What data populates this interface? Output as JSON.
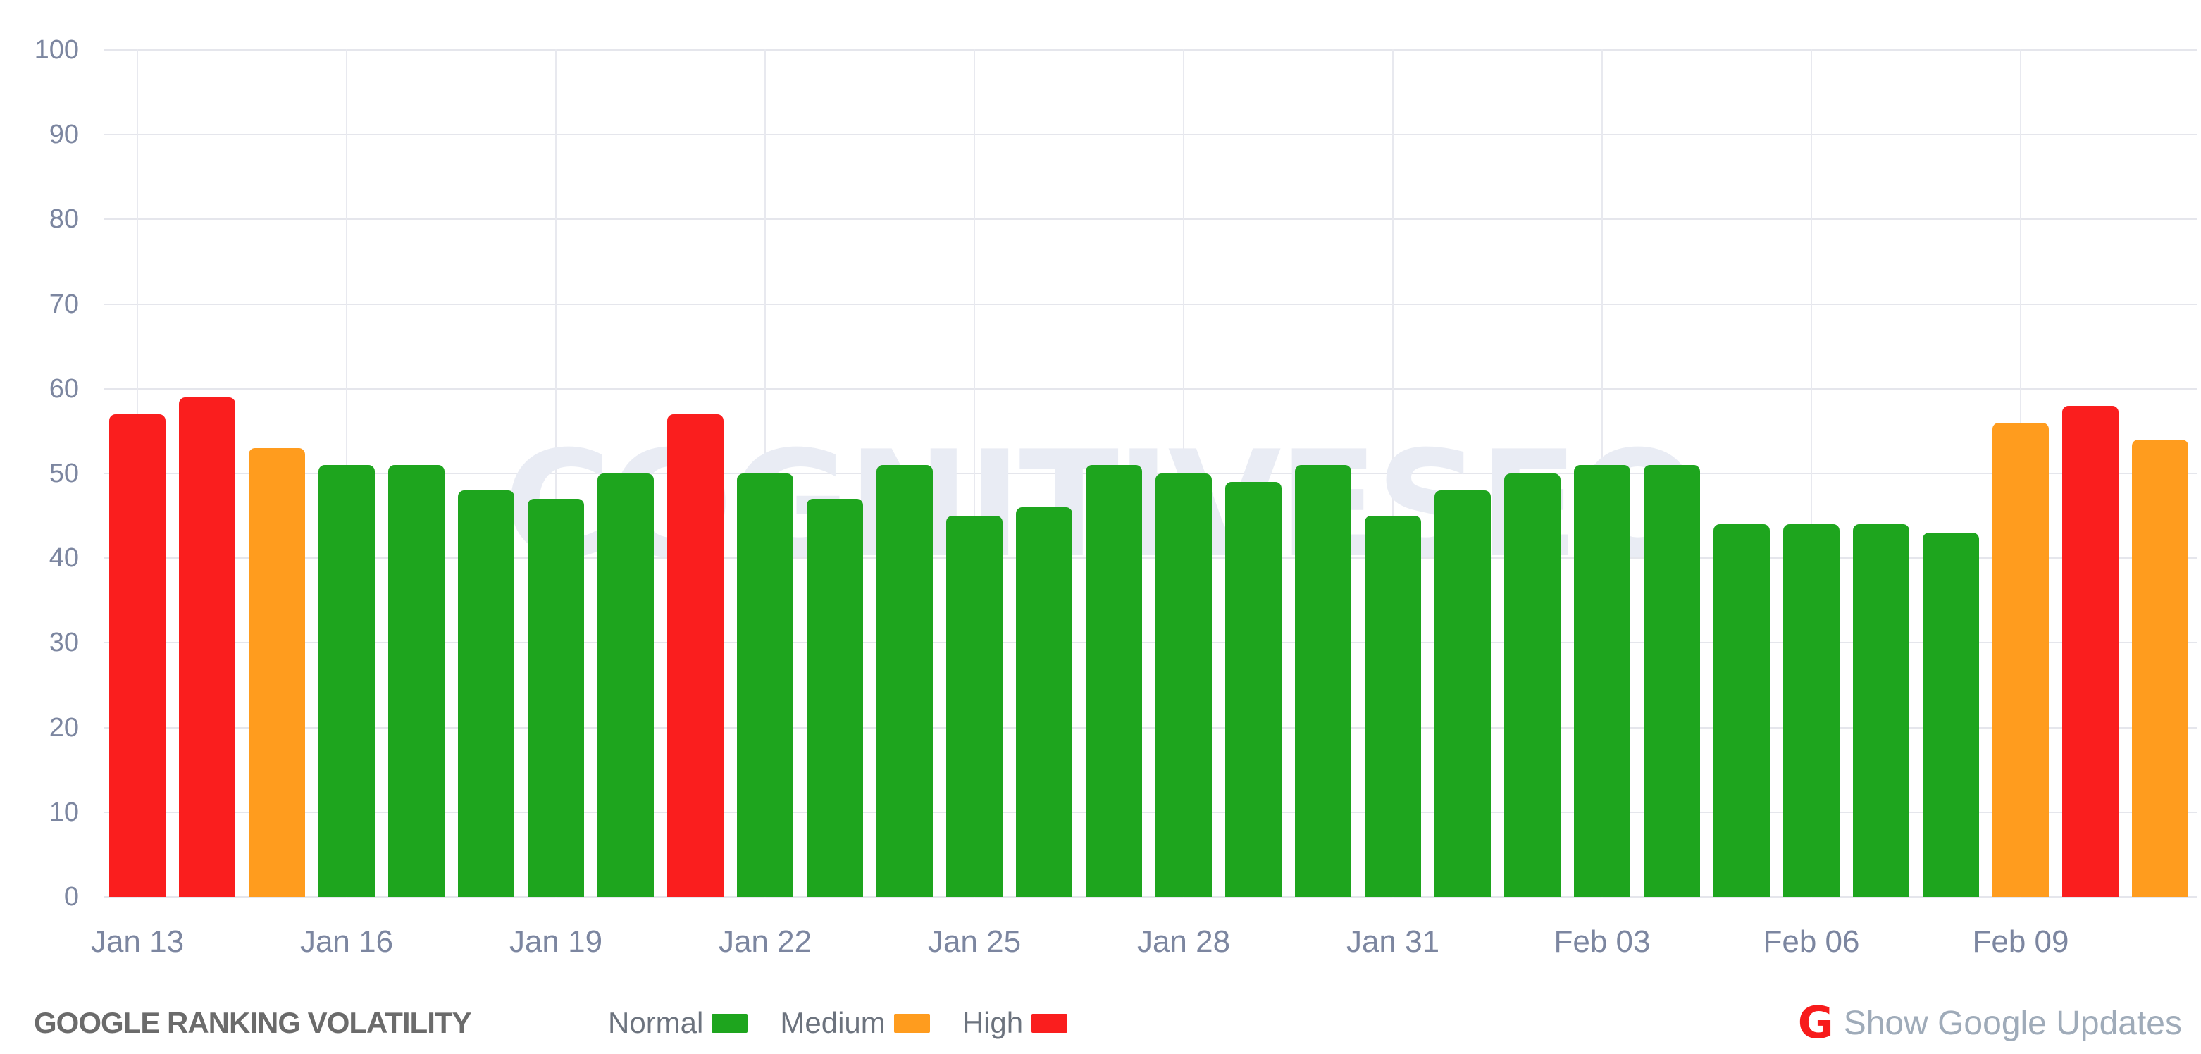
{
  "watermark": "COGNITIVESEO",
  "chart_data": {
    "type": "bar",
    "title": "GOOGLE RANKING VOLATILITY",
    "xlabel": "",
    "ylabel": "",
    "ylim": [
      0,
      100
    ],
    "y_ticks": [
      0,
      10,
      20,
      30,
      40,
      50,
      60,
      70,
      80,
      90,
      100
    ],
    "grid": true,
    "legend_position": "bottom",
    "x": [
      "Jan 13",
      "Jan 14",
      "Jan 15",
      "Jan 16",
      "Jan 17",
      "Jan 18",
      "Jan 19",
      "Jan 20",
      "Jan 21",
      "Jan 22",
      "Jan 23",
      "Jan 24",
      "Jan 25",
      "Jan 26",
      "Jan 27",
      "Jan 28",
      "Jan 29",
      "Jan 30",
      "Jan 31",
      "Feb 01",
      "Feb 02",
      "Feb 03",
      "Feb 04",
      "Feb 05",
      "Feb 06",
      "Feb 07",
      "Feb 08",
      "Feb 09",
      "Feb 10",
      "Feb 11"
    ],
    "values": [
      57,
      59,
      53,
      51,
      51,
      48,
      47,
      50,
      57,
      50,
      47,
      51,
      45,
      46,
      51,
      50,
      49,
      51,
      45,
      48,
      50,
      51,
      51,
      44,
      44,
      44,
      43,
      56,
      58,
      54
    ],
    "levels": [
      "high",
      "high",
      "medium",
      "normal",
      "normal",
      "normal",
      "normal",
      "normal",
      "high",
      "normal",
      "normal",
      "normal",
      "normal",
      "normal",
      "normal",
      "normal",
      "normal",
      "normal",
      "normal",
      "normal",
      "normal",
      "normal",
      "normal",
      "normal",
      "normal",
      "normal",
      "normal",
      "medium",
      "high",
      "medium"
    ],
    "x_tick_labels": [
      "Jan 13",
      "Jan 16",
      "Jan 19",
      "Jan 22",
      "Jan 25",
      "Jan 28",
      "Jan 31",
      "Feb 03",
      "Feb 06",
      "Feb 09"
    ],
    "colors": {
      "normal": "#1EA51E",
      "medium": "#FF9C1E",
      "high": "#FA1E1E"
    }
  },
  "footer": {
    "title": "GOOGLE RANKING VOLATILITY",
    "legend": [
      {
        "label": "Normal",
        "level": "normal",
        "color": "#1EA51E"
      },
      {
        "label": "Medium",
        "level": "medium",
        "color": "#FF9C1E"
      },
      {
        "label": "High",
        "level": "high",
        "color": "#FA1E1E"
      }
    ],
    "google_updates": {
      "icon_glyph": "G",
      "icon_color": "#F71B1B",
      "label": "Show Google Updates"
    }
  }
}
